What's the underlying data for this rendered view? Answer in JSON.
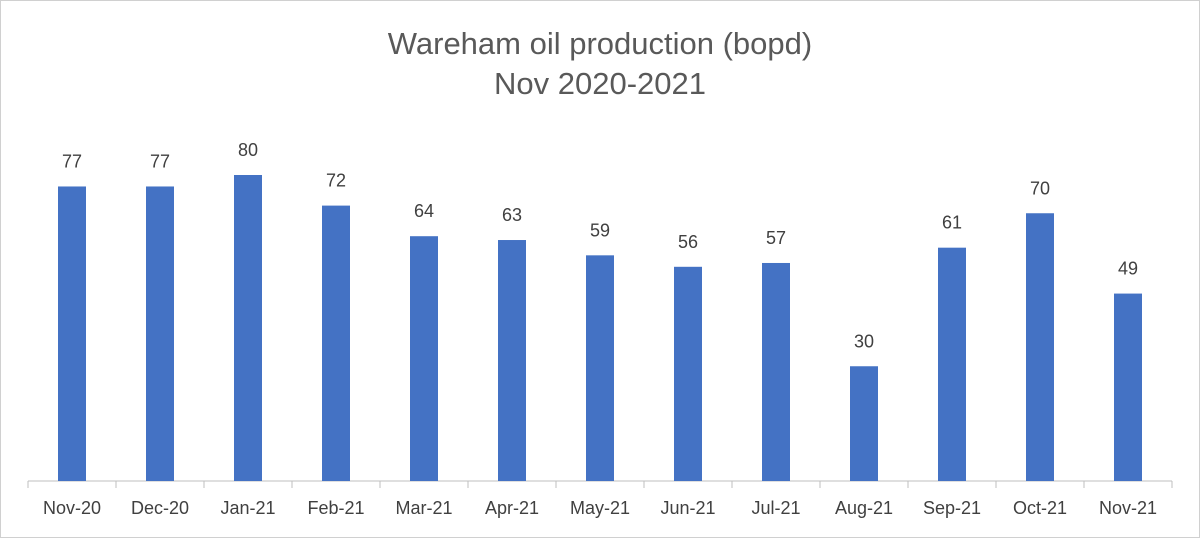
{
  "chart_data": {
    "type": "bar",
    "title": "Wareham oil production (bopd)",
    "subtitle": "Nov 2020-2021",
    "categories": [
      "Nov-20",
      "Dec-20",
      "Jan-21",
      "Feb-21",
      "Mar-21",
      "Apr-21",
      "May-21",
      "Jun-21",
      "Jul-21",
      "Aug-21",
      "Sep-21",
      "Oct-21",
      "Nov-21"
    ],
    "values": [
      77,
      77,
      80,
      72,
      64,
      63,
      59,
      56,
      57,
      30,
      61,
      70,
      49
    ],
    "data_labels": true,
    "grid": false,
    "legend": false,
    "bar_color": "#4472c4",
    "ylim": [
      0,
      80
    ]
  }
}
